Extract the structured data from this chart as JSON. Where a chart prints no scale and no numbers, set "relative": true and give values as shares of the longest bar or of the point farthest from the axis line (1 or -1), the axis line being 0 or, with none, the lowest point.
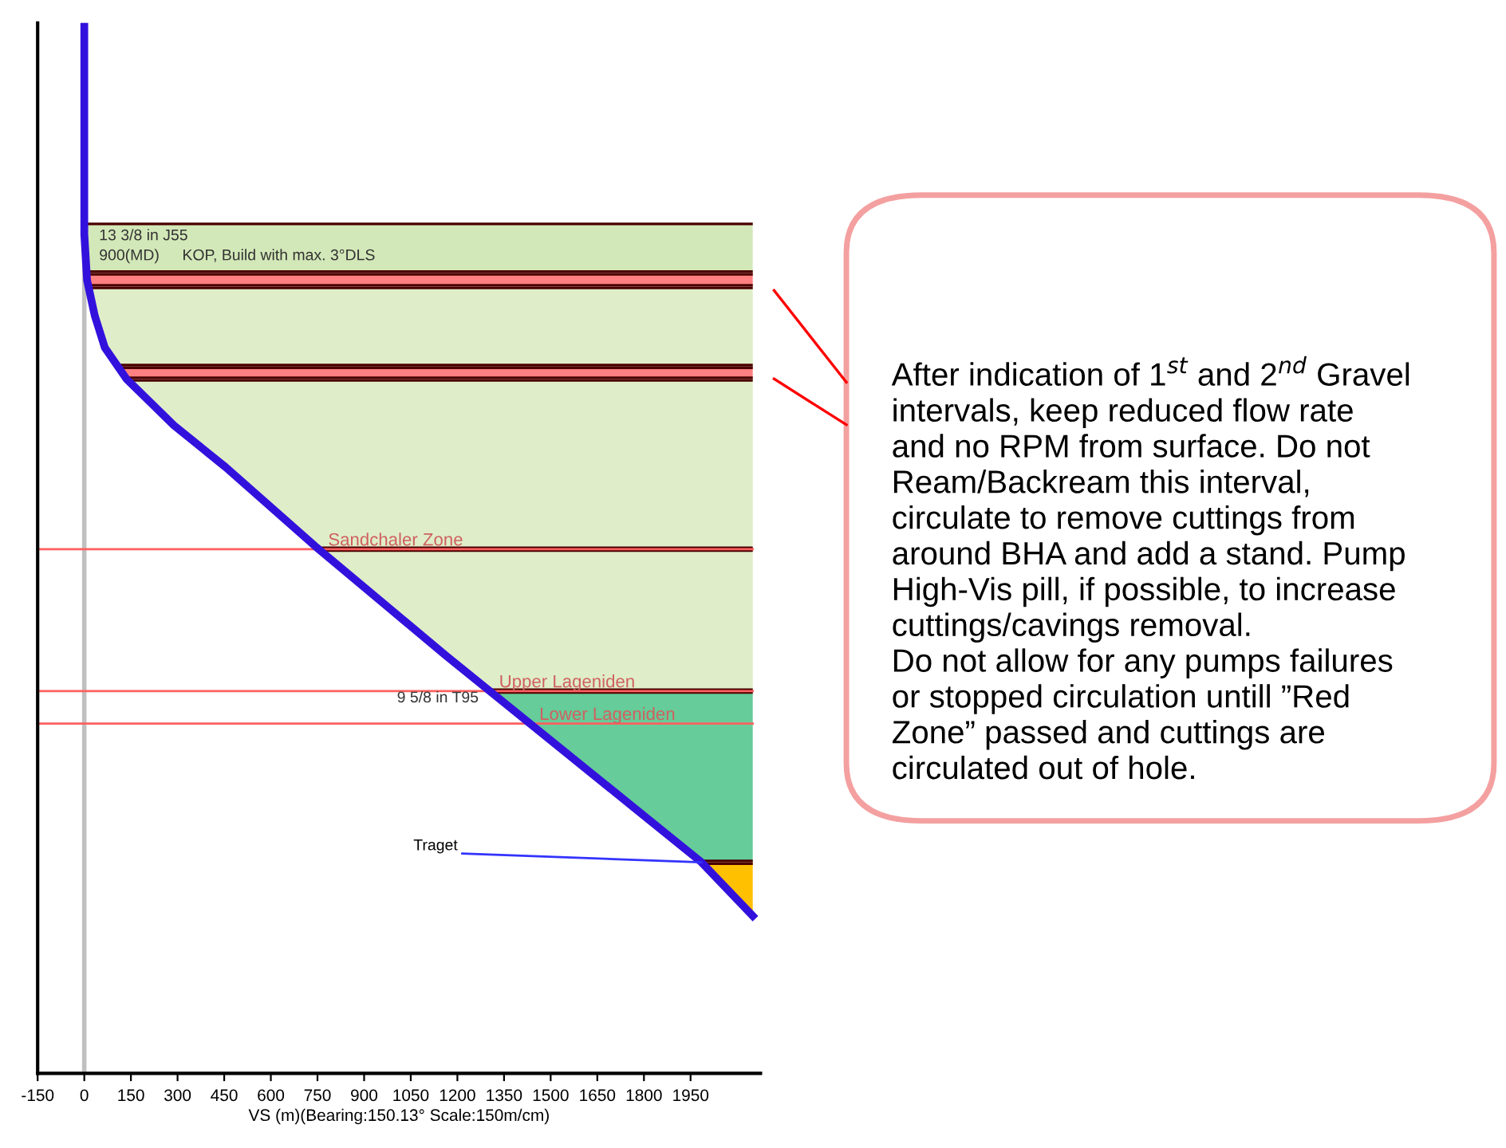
{
  "chart_data": {
    "type": "line",
    "relative": true,
    "xlabel": "VS (m)(Bearing:150.13° Scale:150m/cm)",
    "xlim": [
      -150,
      2175
    ],
    "xticks": [
      -150,
      0,
      150,
      300,
      450,
      600,
      750,
      900,
      1050,
      1200,
      1350,
      1500,
      1650,
      1800,
      1950
    ],
    "tick_labels": "x",
    "grid": false,
    "legend": false,
    "marker": "none",
    "line_style": "solid",
    "series": [
      {
        "color": "#3311dd",
        "x": [
          0,
          0,
          9,
          34,
          66,
          136,
          288,
          455,
          742,
          1162,
          1985,
          2150
        ],
        "values": [
          1.0,
          0.799,
          0.755,
          0.721,
          0.691,
          0.661,
          0.617,
          0.577,
          0.502,
          0.398,
          0.201,
          0.15
        ]
      }
    ],
    "bands": [
      {
        "axis": "y",
        "from": 0.81,
        "to": 0.762,
        "color": "#d3e8b8"
      },
      {
        "axis": "y",
        "from": 0.762,
        "to": 0.749,
        "color": "#ff8080"
      },
      {
        "axis": "y",
        "from": 0.749,
        "to": 0.673,
        "color": "#dfeec8"
      },
      {
        "axis": "y",
        "from": 0.673,
        "to": 0.661,
        "color": "#ff8080"
      },
      {
        "axis": "y",
        "from": 0.661,
        "to": 0.499,
        "color": "#dfeec8"
      },
      {
        "axis": "y",
        "from": 0.499,
        "to": 0.364,
        "color": "#dfeec8"
      },
      {
        "axis": "y",
        "from": 0.364,
        "to": 0.201,
        "color": "#66cc99"
      },
      {
        "axis": "y",
        "from": 0.201,
        "to": 0.15,
        "color": "#ffc000"
      }
    ],
    "ref_lines": [
      {
        "axis": "x",
        "value": 0,
        "color": "#c0c0c0"
      },
      {
        "axis": "y",
        "value": 0.499,
        "label": "Sandchaler Zone",
        "color": "#ff6060"
      },
      {
        "axis": "y",
        "value": 0.364,
        "label": "Upper Lageniden",
        "color": "#ff6060"
      },
      {
        "axis": "y",
        "value": 0.333,
        "label": "Lower Lageniden",
        "color": "#ff6060"
      }
    ],
    "annotations": [
      "13 3/8 in J55",
      "900(MD)",
      "KOP, Build with max. 3°DLS",
      "9 5/8 in T95",
      "Traget",
      "After indication of 1$^{st}$ and 2$^{nd}$ Gravel\nintervals, keep reduced flow rate\nand no RPM from surface. Do not\nReam/Backream this interval,\ncirculate to remove cuttings from\naround BHA and add a stand. Pump\nHigh-Vis pill, if possible, to increase\ncuttings/cavings removal.\nDo not allow for any pumps failures\nor stopped circulation untill ”Red\nZone” passed and cuttings are\ncirculated out of hole."
    ]
  }
}
